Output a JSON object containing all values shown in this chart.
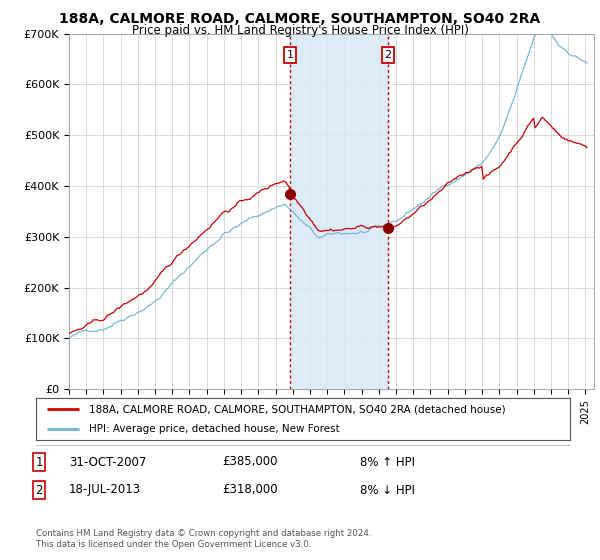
{
  "title": "188A, CALMORE ROAD, CALMORE, SOUTHAMPTON, SO40 2RA",
  "subtitle": "Price paid vs. HM Land Registry's House Price Index (HPI)",
  "legend_line1": "188A, CALMORE ROAD, CALMORE, SOUTHAMPTON, SO40 2RA (detached house)",
  "legend_line2": "HPI: Average price, detached house, New Forest",
  "footnote": "Contains HM Land Registry data © Crown copyright and database right 2024.\nThis data is licensed under the Open Government Licence v3.0.",
  "table": [
    {
      "num": "1",
      "date": "31-OCT-2007",
      "price": "£385,000",
      "hpi": "8% ↑ HPI"
    },
    {
      "num": "2",
      "date": "18-JUL-2013",
      "price": "£318,000",
      "hpi": "8% ↓ HPI"
    }
  ],
  "marker1_x": 2007.83,
  "marker1_y": 385000,
  "marker2_x": 2013.54,
  "marker2_y": 318000,
  "hpi_color": "#6ab0d8",
  "price_color": "#cc0000",
  "shaded_color": "#d6eaf8",
  "ymin": 0,
  "ymax": 700000,
  "yticks": [
    0,
    100000,
    200000,
    300000,
    400000,
    500000,
    600000,
    700000
  ],
  "ytick_labels": [
    "£0",
    "£100K",
    "£200K",
    "£300K",
    "£400K",
    "£500K",
    "£600K",
    "£700K"
  ],
  "xmin": 1995,
  "xmax": 2025.5,
  "background_color": "#ffffff",
  "grid_color": "#cccccc"
}
